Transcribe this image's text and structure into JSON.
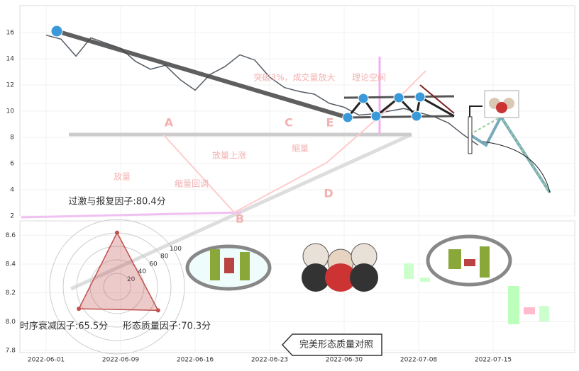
{
  "chart_data": [
    {
      "type": "line",
      "categories": [
        "2022-06-01",
        null,
        null,
        null,
        null,
        "2022-06-09",
        null,
        null,
        null,
        null,
        "2022-06-16",
        null,
        null,
        null,
        null,
        "2022-06-23",
        null,
        null,
        null,
        null,
        "2022-06-30",
        null,
        null,
        null,
        null,
        "2022-07-08",
        null,
        null,
        null,
        null,
        "2022-07-15",
        null,
        null,
        null,
        null,
        null
      ],
      "values": [
        15.8,
        15.5,
        14.2,
        15.6,
        15.2,
        14.8,
        13.8,
        13.2,
        13.5,
        12.4,
        11.6,
        12.8,
        13.4,
        14.3,
        13.9,
        12.6,
        11.8,
        11.5,
        11.3,
        10.6,
        10.3,
        9.7,
        9.8,
        10.0,
        10.2,
        9.9,
        9.6,
        9.1,
        8.2,
        7.4,
        null,
        null,
        null,
        null,
        null,
        null
      ],
      "color": "#555c66",
      "ylim": [
        2,
        18
      ],
      "yticks": [
        2,
        4,
        6,
        8,
        10,
        12,
        14,
        16
      ],
      "annotations": [
        "A",
        "B",
        "C",
        "D",
        "E",
        "放量上涨",
        "缩量回调",
        "放量",
        "缩量",
        "突破3%，成交量放大",
        "理论空间"
      ]
    },
    {
      "type": "line",
      "ylim": [
        7.8,
        8.7
      ],
      "yticks": [
        7.8,
        {
          "value": 8,
          "label": "8.0"
        },
        8.2,
        8.4,
        8.6
      ]
    },
    {
      "type": "radar",
      "labels": [
        "过激与报复因子:80.4分",
        "时序衰减因子:65.5分",
        "形态质量因子:70.3分"
      ],
      "values": [
        80.4,
        65.5,
        70.3
      ],
      "rlim": [
        0,
        100
      ],
      "rticks": [
        20,
        40,
        60,
        80,
        100
      ],
      "color": "#c0504d"
    }
  ],
  "button": {
    "label": "完美形态质量对照"
  }
}
